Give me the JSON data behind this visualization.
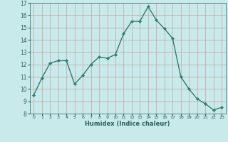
{
  "x": [
    0,
    1,
    2,
    3,
    4,
    5,
    6,
    7,
    8,
    9,
    10,
    11,
    12,
    13,
    14,
    15,
    16,
    17,
    18,
    19,
    20,
    21,
    22,
    23
  ],
  "y": [
    9.5,
    10.9,
    12.1,
    12.3,
    12.3,
    10.4,
    11.1,
    12.0,
    12.6,
    12.5,
    12.8,
    14.5,
    15.5,
    15.5,
    16.7,
    15.6,
    14.9,
    14.1,
    11.0,
    10.0,
    9.2,
    8.8,
    8.3,
    8.5
  ],
  "xlim": [
    -0.5,
    23.5
  ],
  "ylim": [
    8,
    17
  ],
  "yticks": [
    8,
    9,
    10,
    11,
    12,
    13,
    14,
    15,
    16,
    17
  ],
  "xticks": [
    0,
    1,
    2,
    3,
    4,
    5,
    6,
    7,
    8,
    9,
    10,
    11,
    12,
    13,
    14,
    15,
    16,
    17,
    18,
    19,
    20,
    21,
    22,
    23
  ],
  "xlabel": "Humidex (Indice chaleur)",
  "line_color": "#2d7d6d",
  "marker": "D",
  "marker_size": 2.0,
  "bg_color": "#c8eaea",
  "grid_color": "#c8a0a0",
  "text_color": "#2d5f5f"
}
